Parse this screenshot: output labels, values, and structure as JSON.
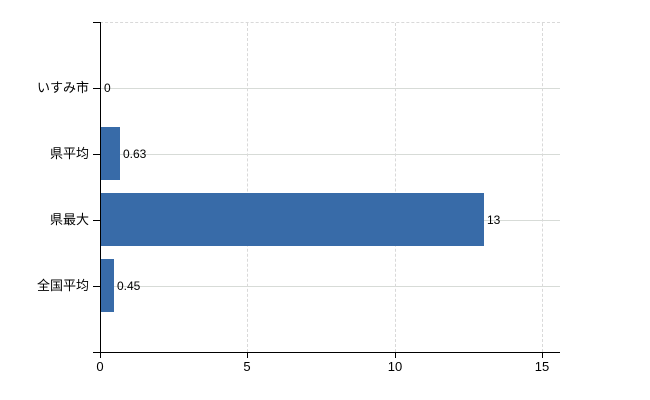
{
  "chart_data": {
    "type": "bar",
    "orientation": "horizontal",
    "title": "",
    "categories": [
      "いすみ市",
      "県平均",
      "県最大",
      "全国平均"
    ],
    "values": [
      0,
      0.63,
      13,
      0.45
    ],
    "value_labels": [
      "0",
      "0.63",
      "13",
      "0.45"
    ],
    "x_tick_labels": [
      "0",
      "5",
      "10",
      "15"
    ],
    "x_tick_values": [
      0,
      5,
      10,
      15
    ],
    "xlim": [
      0,
      15.6
    ],
    "grid": true,
    "legend": false,
    "bar_color": "#386ba8",
    "grid_color": "#d7dbd7",
    "grid_dash_color": "#d9d9d9",
    "axis_color": "#000000",
    "text_color": "#000000",
    "background_color": "#ffffff"
  }
}
